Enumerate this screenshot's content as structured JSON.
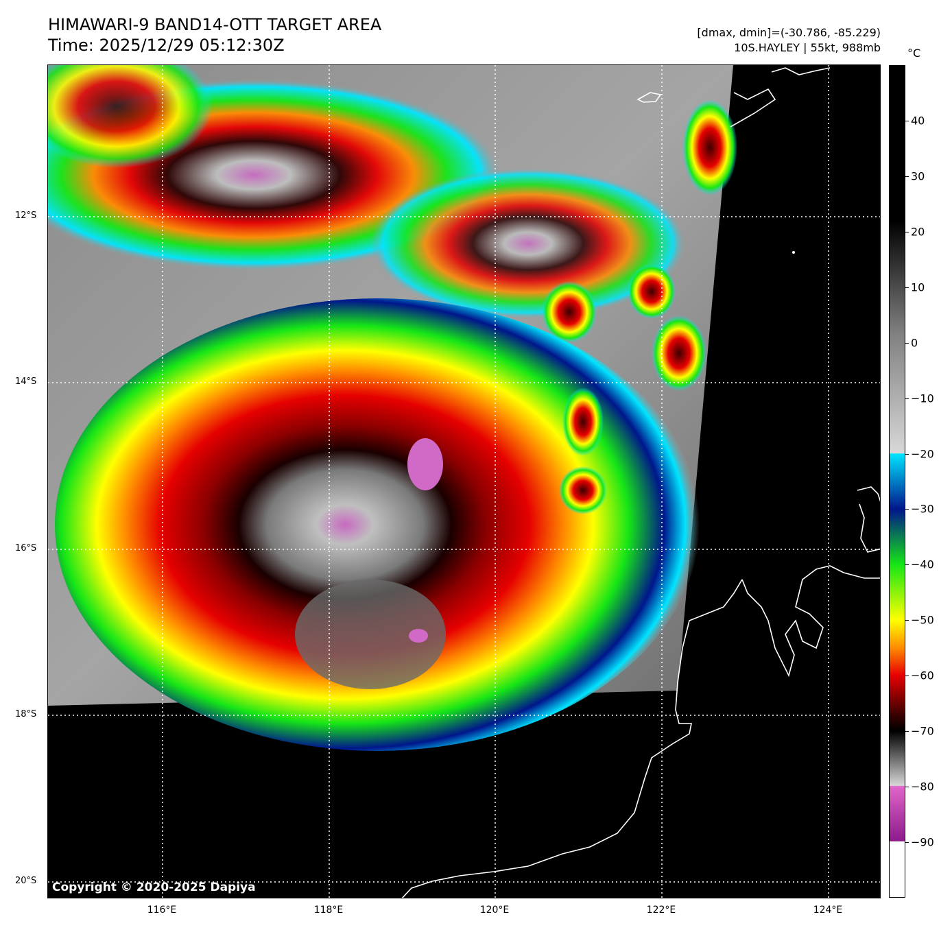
{
  "header": {
    "title_line1": "HIMAWARI-9 BAND14-OTT TARGET AREA",
    "title_line2": "Time: 2025/12/29 05:12:30Z",
    "stats_line": "[dmax, dmin]=(-30.786, -85.229)",
    "storm_line": "10S.HAYLEY | 55kt, 988mb"
  },
  "map": {
    "copyright": "Copyright © 2020-2025 Dapiya",
    "lat_labels": [
      "12°S",
      "14°S",
      "16°S",
      "18°S",
      "20°S"
    ],
    "lon_labels": [
      "116°E",
      "118°E",
      "120°E",
      "122°E",
      "124°E"
    ],
    "gridlines": "dotted-white"
  },
  "colorbar": {
    "unit": "°C",
    "tick_labels": [
      "40",
      "30",
      "20",
      "10",
      "0",
      "−10",
      "−20",
      "−30",
      "−40",
      "−50",
      "−60",
      "−70",
      "−80",
      "−90"
    ],
    "tick_values": [
      40,
      30,
      20,
      10,
      0,
      -10,
      -20,
      -30,
      -40,
      -50,
      -60,
      -70,
      -80,
      -90
    ],
    "range": [
      50,
      -100
    ],
    "colors": {
      "warm": "#000000",
      "neutral": "#7f7f7f",
      "cool_gray": "#d8d8d8",
      "cyan": "#00e5ff",
      "blue": "#00168c",
      "green": "#16e616",
      "yellow": "#ffff00",
      "orange": "#ff8c00",
      "red": "#e60000",
      "dark_red": "#3c0000",
      "magenta": "#e066c8",
      "purple": "#8c1a8c",
      "white": "#ffffff"
    }
  }
}
